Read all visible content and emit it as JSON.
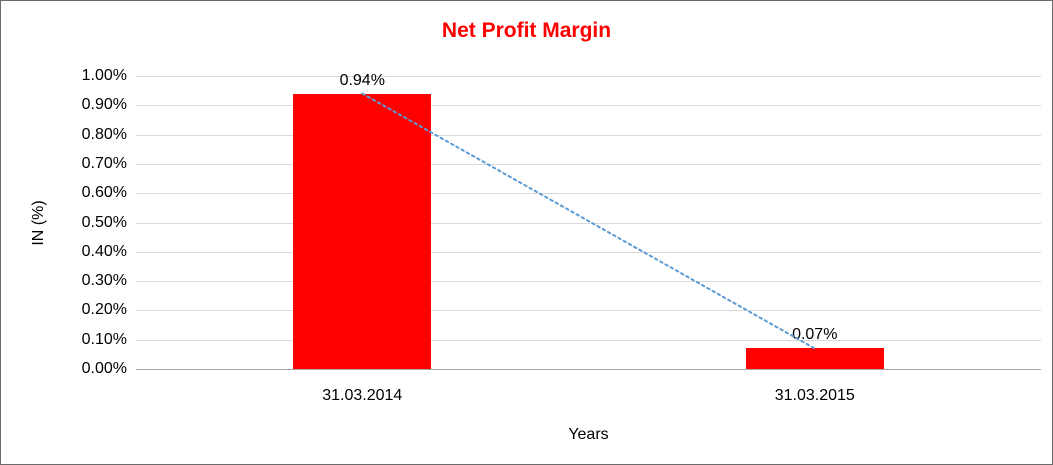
{
  "chart_data": {
    "type": "bar",
    "title": "Net Profit Margin",
    "title_color": "#ff0000",
    "categories": [
      "31.03.2014",
      "31.03.2015"
    ],
    "values": [
      0.94,
      0.07
    ],
    "data_labels": [
      "0.94%",
      "0.07%"
    ],
    "xlabel": "Years",
    "ylabel": "IN (%)",
    "ylim": [
      0,
      1.0
    ],
    "ytick_step": 0.1,
    "ytick_labels": [
      "0.00%",
      "0.10%",
      "0.20%",
      "0.30%",
      "0.40%",
      "0.50%",
      "0.60%",
      "0.70%",
      "0.80%",
      "0.90%",
      "1.00%"
    ],
    "grid": true,
    "legend": "none",
    "bar_color": "#ff0000",
    "gridline_color": "#d9d9d9",
    "axisline_color": "#a6a6a6",
    "trendline": {
      "type": "linear",
      "style": "dotted",
      "color": "#5b9bd5",
      "from": [
        0,
        0.94
      ],
      "to": [
        1,
        0.07
      ]
    }
  }
}
